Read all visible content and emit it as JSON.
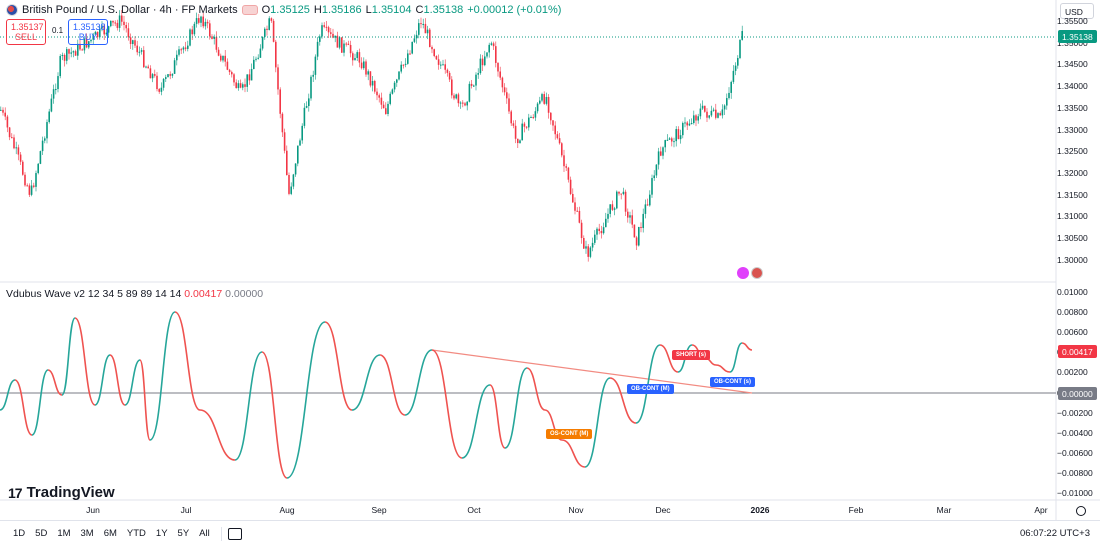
{
  "header": {
    "symbol": "British Pound / U.S. Dollar · 4h · FP Markets",
    "ohlc": [
      {
        "k": "O",
        "v": "1.35125"
      },
      {
        "k": "H",
        "v": "1.35186"
      },
      {
        "k": "L",
        "v": "1.35104"
      },
      {
        "k": "C",
        "v": "1.35138"
      }
    ],
    "change": "+0.00012 (+0.01%)"
  },
  "trade": {
    "sell_price": "1.35137",
    "sell_label": "SELL",
    "spread": "0.1",
    "buy_price": "1.35138",
    "buy_label": "BUY"
  },
  "currency": "USD",
  "price_axis": [
    "1.35500",
    "1.35000",
    "1.34500",
    "1.34000",
    "1.33500",
    "1.33000",
    "1.32500",
    "1.32000",
    "1.31500",
    "1.31000",
    "1.30500",
    "1.30000"
  ],
  "current_price": "1.35138",
  "indicator": {
    "name": "Vdubus Wave v2 12 34 5 89 89 14 14",
    "value1": "0.00417",
    "value2": "0.00000",
    "axis": [
      "0.01000",
      "0.00800",
      "0.00600",
      "0.00400",
      "0.00200",
      "0.00000",
      "−0.00200",
      "−0.00400",
      "−0.00600",
      "−0.00800",
      "−0.01000"
    ],
    "current_value": "0.00417",
    "zero_value": "0.00000",
    "labels": {
      "os_cont": "OS-CONT (M)",
      "ob_cont_m": "OB-CONT (M)",
      "short": "SHORT (s)",
      "ob_cont_s": "OB-CONT (s)"
    }
  },
  "time_axis": [
    "Jun",
    "Jul",
    "Aug",
    "Sep",
    "Oct",
    "Nov",
    "Dec",
    "2026",
    "Feb",
    "Mar",
    "Apr"
  ],
  "toolbar": {
    "ranges": [
      "1D",
      "5D",
      "1M",
      "3M",
      "6M",
      "YTD",
      "1Y",
      "5Y",
      "All"
    ],
    "clock": "06:07:22 UTC+3"
  },
  "brand": "TradingView",
  "colors": {
    "up": "#089981",
    "down": "#f23645",
    "ob": "#2962ff",
    "os": "#f57c00"
  }
}
